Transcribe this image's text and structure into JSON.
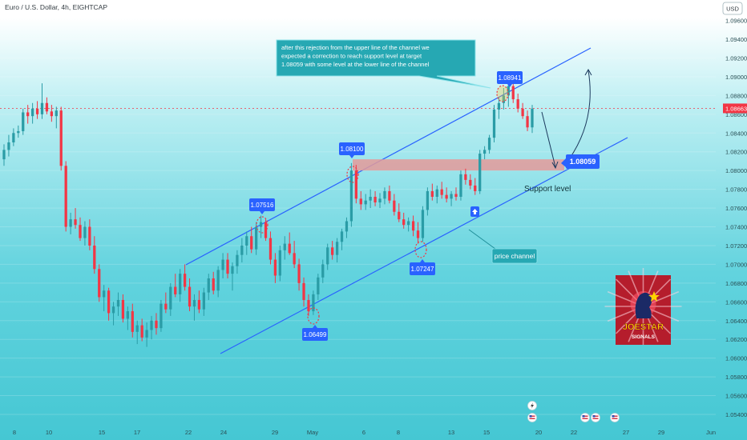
{
  "header": {
    "symbol_title": "Euro / U.S. Dollar, 4h, EIGHTCAP",
    "currency_label": "USD"
  },
  "chart_data": {
    "type": "candlestick",
    "title": "Euro / U.S. Dollar, 4h, EIGHTCAP",
    "currency": "USD",
    "ylim": [
      1.054,
      1.0975
    ],
    "y_ticks": [
      "1.09600",
      "1.09400",
      "1.09200",
      "1.09000",
      "1.08800",
      "1.08600",
      "1.08400",
      "1.08200",
      "1.08000",
      "1.07800",
      "1.07600",
      "1.07400",
      "1.07200",
      "1.07000",
      "1.06800",
      "1.06600",
      "1.06400",
      "1.06200",
      "1.06000",
      "1.05800",
      "1.05600",
      "1.05400"
    ],
    "x_ticks": [
      "8",
      "10",
      "15",
      "17",
      "22",
      "24",
      "29",
      "May",
      "6",
      "8",
      "13",
      "15",
      "20",
      "22",
      "27",
      "29",
      "Jun"
    ],
    "last_price": "1.08663",
    "last_price_value": 1.08663,
    "candles": [
      [
        1.0812,
        1.0828,
        1.0805,
        1.0822
      ],
      [
        1.0822,
        1.0838,
        1.0815,
        1.083
      ],
      [
        1.083,
        1.0845,
        1.0826,
        1.084
      ],
      [
        1.084,
        1.0848,
        1.0835,
        1.0842
      ],
      [
        1.0842,
        1.0866,
        1.0838,
        1.0862
      ],
      [
        1.0862,
        1.087,
        1.085,
        1.0858
      ],
      [
        1.0858,
        1.0872,
        1.085,
        1.0866
      ],
      [
        1.0866,
        1.0874,
        1.0855,
        1.086
      ],
      [
        1.086,
        1.0893,
        1.0855,
        1.0872
      ],
      [
        1.0872,
        1.0878,
        1.086,
        1.0863
      ],
      [
        1.0863,
        1.087,
        1.0852,
        1.0858
      ],
      [
        1.0858,
        1.0868,
        1.0845,
        1.0864
      ],
      [
        1.0864,
        1.0868,
        1.08,
        1.0805
      ],
      [
        1.0805,
        1.081,
        1.0735,
        1.074
      ],
      [
        1.074,
        1.0755,
        1.0732,
        1.0748
      ],
      [
        1.0748,
        1.076,
        1.0738,
        1.0742
      ],
      [
        1.0742,
        1.075,
        1.0725,
        1.0728
      ],
      [
        1.0728,
        1.0746,
        1.072,
        1.074
      ],
      [
        1.074,
        1.0748,
        1.0715,
        1.072
      ],
      [
        1.072,
        1.073,
        1.069,
        1.0695
      ],
      [
        1.0695,
        1.07,
        1.066,
        1.0665
      ],
      [
        1.0665,
        1.0678,
        1.065,
        1.0672
      ],
      [
        1.0672,
        1.0675,
        1.064,
        1.0648
      ],
      [
        1.0648,
        1.066,
        1.0635,
        1.0655
      ],
      [
        1.0655,
        1.067,
        1.0645,
        1.0662
      ],
      [
        1.0662,
        1.0668,
        1.0638,
        1.0642
      ],
      [
        1.0642,
        1.0655,
        1.063,
        1.065
      ],
      [
        1.065,
        1.0658,
        1.0622,
        1.0628
      ],
      [
        1.0628,
        1.064,
        1.0615,
        1.0635
      ],
      [
        1.0635,
        1.0642,
        1.0618,
        1.0622
      ],
      [
        1.0622,
        1.0638,
        1.0612,
        1.063
      ],
      [
        1.063,
        1.0645,
        1.062,
        1.064
      ],
      [
        1.064,
        1.0648,
        1.0625,
        1.0632
      ],
      [
        1.0632,
        1.0662,
        1.0628,
        1.0658
      ],
      [
        1.0658,
        1.067,
        1.0648,
        1.0652
      ],
      [
        1.0652,
        1.068,
        1.0645,
        1.0676
      ],
      [
        1.0676,
        1.069,
        1.0665,
        1.0668
      ],
      [
        1.0668,
        1.0695,
        1.066,
        1.069
      ],
      [
        1.069,
        1.07,
        1.0672,
        1.0676
      ],
      [
        1.0676,
        1.0685,
        1.065,
        1.0655
      ],
      [
        1.0655,
        1.0668,
        1.064,
        1.0662
      ],
      [
        1.0662,
        1.0672,
        1.0648,
        1.0652
      ],
      [
        1.0652,
        1.0675,
        1.0645,
        1.067
      ],
      [
        1.067,
        1.069,
        1.0662,
        1.0685
      ],
      [
        1.0685,
        1.0692,
        1.0668,
        1.0672
      ],
      [
        1.0672,
        1.0698,
        1.0665,
        1.0694
      ],
      [
        1.0694,
        1.0712,
        1.0685,
        1.0705
      ],
      [
        1.0705,
        1.0712,
        1.0685,
        1.069
      ],
      [
        1.069,
        1.0702,
        1.0672,
        1.0698
      ],
      [
        1.0698,
        1.0715,
        1.069,
        1.071
      ],
      [
        1.071,
        1.0728,
        1.0702,
        1.072
      ],
      [
        1.072,
        1.0735,
        1.071,
        1.073
      ],
      [
        1.073,
        1.074,
        1.0712,
        1.0716
      ],
      [
        1.0716,
        1.0745,
        1.071,
        1.074
      ],
      [
        1.074,
        1.0752,
        1.0728,
        1.0745
      ],
      [
        1.0745,
        1.0748,
        1.0725,
        1.0728
      ],
      [
        1.0728,
        1.0735,
        1.07,
        1.0705
      ],
      [
        1.0705,
        1.0712,
        1.068,
        1.0688
      ],
      [
        1.0688,
        1.072,
        1.0682,
        1.0715
      ],
      [
        1.0715,
        1.073,
        1.0705,
        1.0722
      ],
      [
        1.0722,
        1.0734,
        1.071,
        1.0712
      ],
      [
        1.0712,
        1.0725,
        1.0696,
        1.07
      ],
      [
        1.07,
        1.0706,
        1.0672,
        1.068
      ],
      [
        1.068,
        1.0686,
        1.0655,
        1.0662
      ],
      [
        1.0662,
        1.0668,
        1.0645,
        1.065
      ],
      [
        1.065,
        1.0672,
        1.0646,
        1.0668
      ],
      [
        1.0668,
        1.069,
        1.0662,
        1.0686
      ],
      [
        1.0686,
        1.0705,
        1.068,
        1.07
      ],
      [
        1.07,
        1.0722,
        1.0694,
        1.0718
      ],
      [
        1.0718,
        1.0725,
        1.0705,
        1.071
      ],
      [
        1.071,
        1.0728,
        1.0702,
        1.0724
      ],
      [
        1.0724,
        1.0738,
        1.0715,
        1.0735
      ],
      [
        1.0735,
        1.075,
        1.0728,
        1.0746
      ],
      [
        1.0746,
        1.0808,
        1.074,
        1.08
      ],
      [
        1.08,
        1.0806,
        1.0765,
        1.077
      ],
      [
        1.077,
        1.0778,
        1.0758,
        1.0764
      ],
      [
        1.0764,
        1.0775,
        1.0758,
        1.0768
      ],
      [
        1.0768,
        1.078,
        1.076,
        1.0772
      ],
      [
        1.0772,
        1.0778,
        1.0762,
        1.0766
      ],
      [
        1.0766,
        1.0776,
        1.076,
        1.077
      ],
      [
        1.077,
        1.0782,
        1.0764,
        1.0778
      ],
      [
        1.0778,
        1.0784,
        1.0765,
        1.0768
      ],
      [
        1.0768,
        1.0775,
        1.0752,
        1.0756
      ],
      [
        1.0756,
        1.0765,
        1.0745,
        1.0748
      ],
      [
        1.0748,
        1.0755,
        1.0738,
        1.0742
      ],
      [
        1.0742,
        1.075,
        1.0735,
        1.0746
      ],
      [
        1.0746,
        1.0752,
        1.073,
        1.0736
      ],
      [
        1.0736,
        1.0745,
        1.0722,
        1.0728
      ],
      [
        1.0728,
        1.0762,
        1.0724,
        1.0758
      ],
      [
        1.0758,
        1.0782,
        1.0752,
        1.0778
      ],
      [
        1.0778,
        1.0786,
        1.0768,
        1.0772
      ],
      [
        1.0772,
        1.0784,
        1.0765,
        1.078
      ],
      [
        1.078,
        1.0788,
        1.077,
        1.0774
      ],
      [
        1.0774,
        1.0782,
        1.0766,
        1.077
      ],
      [
        1.077,
        1.0778,
        1.0762,
        1.0775
      ],
      [
        1.0775,
        1.0782,
        1.0768,
        1.0772
      ],
      [
        1.0772,
        1.08,
        1.0768,
        1.0796
      ],
      [
        1.0796,
        1.0802,
        1.0785,
        1.079
      ],
      [
        1.079,
        1.0796,
        1.078,
        1.0784
      ],
      [
        1.0784,
        1.0792,
        1.0774,
        1.0778
      ],
      [
        1.0778,
        1.0822,
        1.0775,
        1.0818
      ],
      [
        1.0818,
        1.0826,
        1.0812,
        1.0822
      ],
      [
        1.0822,
        1.0838,
        1.0818,
        1.0835
      ],
      [
        1.0835,
        1.087,
        1.083,
        1.0865
      ],
      [
        1.0865,
        1.0878,
        1.0855,
        1.0872
      ],
      [
        1.0872,
        1.0888,
        1.0865,
        1.088
      ],
      [
        1.088,
        1.0894,
        1.0868,
        1.089
      ],
      [
        1.089,
        1.0894,
        1.0872,
        1.0876
      ],
      [
        1.0876,
        1.0882,
        1.0862,
        1.0866
      ],
      [
        1.0866,
        1.0872,
        1.0855,
        1.0858
      ],
      [
        1.0858,
        1.0864,
        1.0842,
        1.0846
      ],
      [
        1.0846,
        1.087,
        1.084,
        1.0866
      ]
    ],
    "channel": {
      "upper": [
        [
          1.0697,
          232
        ],
        [
          1.095,
          737
        ]
      ],
      "lower": [
        [
          1.0604,
          275
        ],
        [
          1.0836,
          783
        ]
      ]
    },
    "support_zone": {
      "from": 1.08,
      "to": 1.0812,
      "label": "Support level",
      "target_label": "1.08059"
    },
    "price_labels": [
      "1.07516",
      "1.08100",
      "1.06499",
      "1.07247",
      "1.08941",
      "1.08059"
    ],
    "annotation_text": "after this rejection from the upper line of the channel we expected a correction to reach support level at target 1.08059 with some level at the lower line of the channel",
    "channel_label": "price channel",
    "logo_text": "JOESTAR",
    "logo_subtext": "SIGNALS",
    "event_icons": [
      "lightning-icon",
      "us-flag-icon",
      "eu-flag-icon",
      "us-flag-icon",
      "eu-flag-icon",
      "us-flag-icon"
    ],
    "colors": {
      "up": "#2a9ca6",
      "down": "#f23645",
      "channel": "#2962ff",
      "label_bg": "#2962ff",
      "support_zone": "#e49a9a",
      "callout_bg": "#26a8b3",
      "last_price_bg": "#f23645"
    }
  }
}
